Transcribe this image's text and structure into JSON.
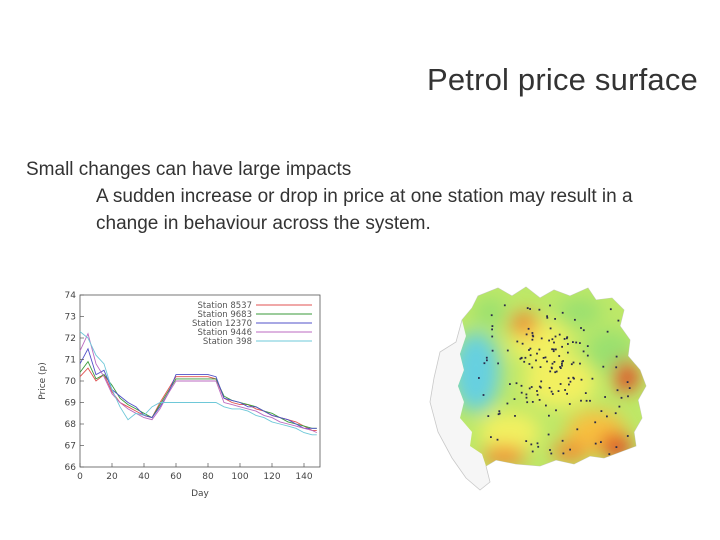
{
  "slide": {
    "title": "Petrol price surface",
    "bullet1": "Small changes can have large impacts",
    "bullet2": "A sudden increase or drop in price at one station may result in a change in behaviour across the system."
  },
  "colors": {
    "text": "#333333"
  },
  "chart_data": {
    "type": "line",
    "xlabel": "Day",
    "ylabel": "Price (p)",
    "xlim": [
      0,
      150
    ],
    "ylim": [
      66,
      74
    ],
    "xticks": [
      "0",
      "20",
      "40",
      "60",
      "80",
      "100",
      "120",
      "140"
    ],
    "yticks": [
      "66",
      "67",
      "68",
      "69",
      "70",
      "71",
      "72",
      "73",
      "74"
    ],
    "legend_position": "top-right",
    "grid": false,
    "series": [
      {
        "name": "Station 8537",
        "color": "#e05050",
        "x": [
          0,
          5,
          10,
          15,
          20,
          25,
          30,
          35,
          40,
          45,
          50,
          55,
          60,
          65,
          70,
          75,
          80,
          85,
          90,
          95,
          100,
          105,
          110,
          115,
          120,
          125,
          130,
          135,
          140,
          145,
          148
        ],
        "y": [
          70.2,
          70.6,
          70.0,
          70.3,
          69.5,
          69.0,
          68.8,
          68.6,
          68.4,
          68.3,
          69.0,
          69.6,
          70.2,
          70.2,
          70.2,
          70.2,
          70.2,
          70.1,
          69.2,
          69.0,
          68.9,
          68.9,
          68.7,
          68.6,
          68.4,
          68.3,
          68.2,
          68.1,
          67.9,
          67.7,
          67.7
        ]
      },
      {
        "name": "Station 9683",
        "color": "#3a9a3a",
        "x": [
          0,
          5,
          10,
          15,
          20,
          25,
          30,
          35,
          40,
          45,
          50,
          55,
          60,
          65,
          70,
          75,
          80,
          85,
          90,
          95,
          100,
          105,
          110,
          115,
          120,
          125,
          130,
          135,
          140,
          145,
          148
        ],
        "y": [
          70.4,
          70.9,
          70.1,
          70.3,
          69.8,
          69.2,
          68.9,
          68.7,
          68.5,
          68.3,
          68.9,
          69.5,
          70.1,
          70.1,
          70.1,
          70.1,
          70.1,
          70.1,
          69.3,
          69.1,
          69.0,
          68.9,
          68.8,
          68.6,
          68.5,
          68.3,
          68.1,
          68.0,
          67.9,
          67.8,
          67.8
        ]
      },
      {
        "name": "Station 12370",
        "color": "#5050c8",
        "x": [
          0,
          5,
          10,
          15,
          20,
          25,
          30,
          35,
          40,
          45,
          50,
          55,
          60,
          65,
          70,
          75,
          80,
          85,
          90,
          95,
          100,
          105,
          110,
          115,
          120,
          125,
          130,
          135,
          140,
          145,
          148
        ],
        "y": [
          70.8,
          71.5,
          70.3,
          70.5,
          69.6,
          69.3,
          69.0,
          68.8,
          68.4,
          68.3,
          68.8,
          69.4,
          70.3,
          70.3,
          70.3,
          70.3,
          70.3,
          70.2,
          69.2,
          69.1,
          69.0,
          68.8,
          68.8,
          68.6,
          68.4,
          68.3,
          68.2,
          68.0,
          67.8,
          67.8,
          67.8
        ]
      },
      {
        "name": "Station 9446",
        "color": "#bb6ac0",
        "x": [
          0,
          5,
          10,
          15,
          20,
          25,
          30,
          35,
          40,
          45,
          50,
          55,
          60,
          65,
          70,
          75,
          80,
          85,
          90,
          95,
          100,
          105,
          110,
          115,
          120,
          125,
          130,
          135,
          140,
          145,
          148
        ],
        "y": [
          71.4,
          72.2,
          70.8,
          70.2,
          69.4,
          69.0,
          68.7,
          68.5,
          68.3,
          68.2,
          68.7,
          69.4,
          70.0,
          70.0,
          70.0,
          70.0,
          70.0,
          70.0,
          69.0,
          68.9,
          68.8,
          68.7,
          68.6,
          68.4,
          68.3,
          68.1,
          68.0,
          67.9,
          67.8,
          67.7,
          67.6
        ]
      },
      {
        "name": "Station 398",
        "color": "#6ec8d8",
        "x": [
          0,
          5,
          10,
          15,
          20,
          25,
          30,
          35,
          40,
          45,
          50,
          55,
          60,
          65,
          70,
          75,
          80,
          85,
          90,
          95,
          100,
          105,
          110,
          115,
          120,
          125,
          130,
          135,
          140,
          145,
          148
        ],
        "y": [
          72.3,
          72.0,
          71.2,
          70.8,
          69.6,
          68.8,
          68.2,
          68.5,
          68.4,
          68.8,
          69.0,
          69.0,
          69.0,
          69.0,
          69.0,
          69.0,
          69.0,
          69.0,
          68.8,
          68.7,
          68.7,
          68.6,
          68.4,
          68.3,
          68.1,
          68.0,
          67.9,
          67.8,
          67.6,
          67.5,
          67.5
        ]
      }
    ]
  },
  "map": {
    "palette": [
      "#66d0e0",
      "#9ae070",
      "#f2f060",
      "#f7c040",
      "#f08a30",
      "#e04020"
    ]
  }
}
